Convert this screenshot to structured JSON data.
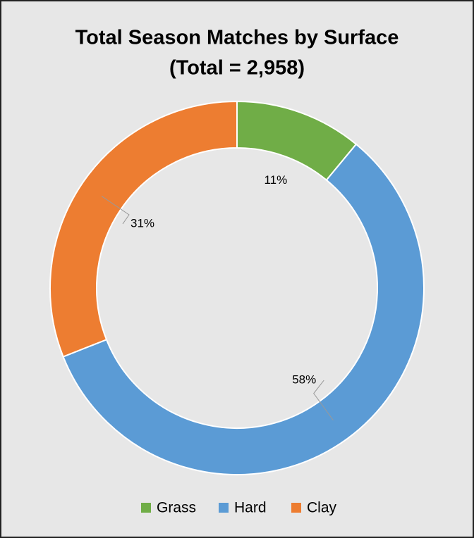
{
  "chart_data": {
    "type": "donut",
    "title": "Total Season Matches by Surface",
    "subtitle": "(Total = 2,958)",
    "categories": [
      "Grass",
      "Hard",
      "Clay"
    ],
    "values": [
      11,
      58,
      31
    ],
    "value_labels": [
      "11%",
      "58%",
      "31%"
    ],
    "colors": [
      "#70ad47",
      "#5b9bd5",
      "#ed7d31"
    ],
    "legend": "bottom"
  }
}
